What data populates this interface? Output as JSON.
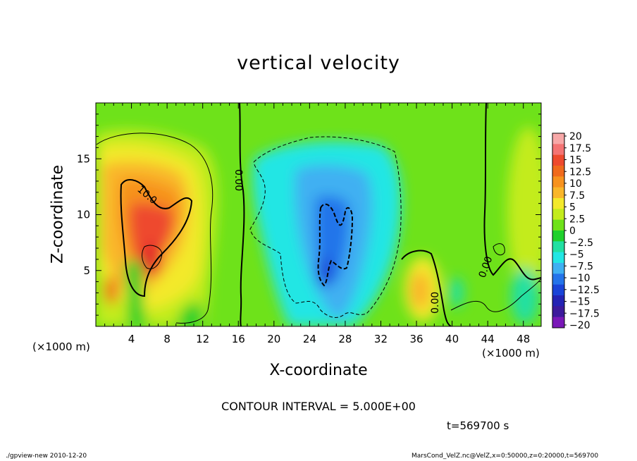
{
  "chart_data": {
    "type": "heatmap",
    "title": "vertical velocity",
    "xlabel": "X-coordinate",
    "ylabel": "Z-coordinate",
    "x_unit": "(×1000 m)",
    "xlim": [
      0,
      50
    ],
    "ylim": [
      0,
      20
    ],
    "x_ticks": [
      4,
      8,
      12,
      16,
      20,
      24,
      28,
      32,
      36,
      40,
      44,
      48
    ],
    "y_ticks": [
      5,
      10,
      15
    ],
    "colorbar": {
      "labels": [
        "20",
        "17.5",
        "15",
        "12.5",
        "10",
        "7.5",
        "5",
        "2.5",
        "0",
        "−2.5",
        "−5",
        "−7.5",
        "−10",
        "−12.5",
        "−15",
        "−17.5",
        "−20"
      ],
      "colors": [
        "#f7a8a8",
        "#f47474",
        "#ee4a2e",
        "#f06a1c",
        "#f7921e",
        "#f9b62a",
        "#f3e92c",
        "#c3ec1c",
        "#6ee21a",
        "#1fd02c",
        "#21e0a2",
        "#22e6e4",
        "#3fb0f2",
        "#2474ea",
        "#1a44d8",
        "#2423b4",
        "#3d1a9c",
        "#7a18b8"
      ]
    },
    "contour_labels": [
      "10.0",
      "0.00",
      "0.00",
      "0.00"
    ],
    "contour_interval": "CONTOUR INTERVAL = 5.000E+00",
    "time": "t=569700 s"
  },
  "footer": {
    "left": "./gpview-new   2010-12-20",
    "right": "MarsCond_VelZ.nc@VelZ,x=0:50000,z=0:20000,t=569700"
  }
}
